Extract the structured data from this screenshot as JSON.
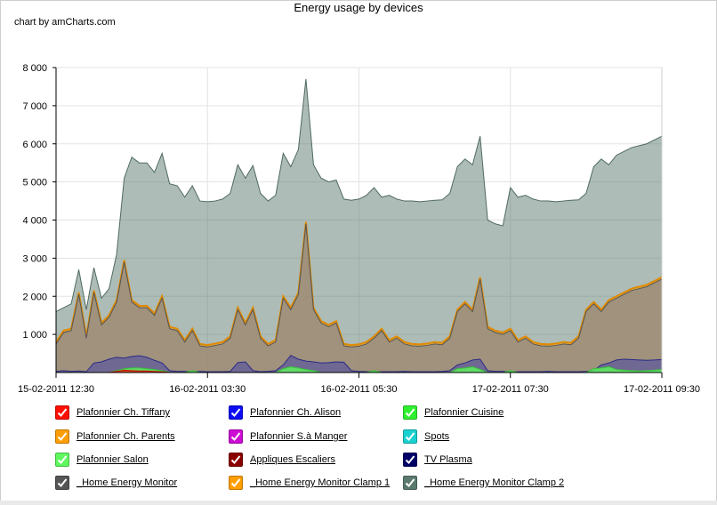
{
  "chart_title": "Energy usage by devices",
  "credit": "chart by amCharts.com",
  "chart_data": {
    "type": "area",
    "title": "Energy usage by devices",
    "ylim": [
      0,
      8000
    ],
    "y_ticks": [
      "8 000",
      "7 000",
      "6 000",
      "5 000",
      "4 000",
      "3 000",
      "2 000",
      "1 000"
    ],
    "y_tick_values": [
      8000,
      7000,
      6000,
      5000,
      4000,
      3000,
      2000,
      1000
    ],
    "x_tick_labels": [
      "15-02-2011 12:30",
      "16-02-2011 03:30",
      "16-02-2011 05:30",
      "17-02-2011 07:30",
      "17-02-2011 09:30"
    ],
    "x_tick_index": [
      0,
      20,
      40,
      60,
      80
    ],
    "grid": true,
    "series": [
      {
        "name": "_Home Energy Monitor Clamp 2",
        "color": "#5b7a6e",
        "values": [
          1600,
          1700,
          1800,
          2700,
          1650,
          2750,
          1950,
          2200,
          3100,
          5100,
          5650,
          5500,
          5500,
          5250,
          5750,
          4950,
          4900,
          4600,
          4900,
          4500,
          4480,
          4500,
          4550,
          4700,
          5450,
          5100,
          5430,
          4700,
          4500,
          4650,
          5750,
          5400,
          5850,
          7700,
          5450,
          5100,
          5000,
          5050,
          4550,
          4520,
          4550,
          4650,
          4850,
          4600,
          4650,
          4550,
          4500,
          4500,
          4480,
          4500,
          4520,
          4530,
          4700,
          5400,
          5600,
          5450,
          6200,
          4000,
          3900,
          3850,
          4850,
          4600,
          4650,
          4550,
          4500,
          4500,
          4480,
          4500,
          4520,
          4530,
          4700,
          5400,
          5600,
          5450,
          5700,
          5800,
          5900,
          5950,
          6000,
          6100,
          6200
        ]
      },
      {
        "name": "_Home Energy Monitor Clamp 1",
        "color": "#ff9e01",
        "values": [
          800,
          1100,
          1150,
          2100,
          950,
          2150,
          1300,
          1500,
          1900,
          2950,
          1900,
          1750,
          1750,
          1550,
          2000,
          1200,
          1150,
          850,
          1150,
          750,
          720,
          760,
          800,
          950,
          1700,
          1300,
          1700,
          950,
          750,
          850,
          2000,
          1700,
          2100,
          3950,
          1700,
          1350,
          1250,
          1350,
          750,
          720,
          740,
          800,
          950,
          1150,
          850,
          950,
          800,
          750,
          740,
          760,
          800,
          780,
          950,
          1650,
          1850,
          1650,
          2500,
          1200,
          1100,
          1050,
          1150,
          850,
          950,
          800,
          750,
          740,
          760,
          800,
          780,
          950,
          1650,
          1850,
          1650,
          1900,
          2000,
          2100,
          2200,
          2250,
          2300,
          2400,
          2500
        ]
      },
      {
        "name": "_Home Energy Monitor",
        "color": "#555555",
        "values": [
          750,
          1050,
          1100,
          2050,
          900,
          2100,
          1250,
          1450,
          1850,
          2900,
          1850,
          1700,
          1700,
          1500,
          1950,
          1150,
          1100,
          800,
          1100,
          700,
          670,
          710,
          750,
          900,
          1650,
          1250,
          1650,
          900,
          700,
          800,
          1950,
          1650,
          2050,
          3900,
          1650,
          1300,
          1200,
          1300,
          700,
          670,
          690,
          750,
          900,
          1100,
          800,
          900,
          750,
          700,
          690,
          710,
          750,
          730,
          900,
          1600,
          1800,
          1600,
          2450,
          1150,
          1050,
          1000,
          1100,
          800,
          900,
          750,
          700,
          690,
          710,
          750,
          730,
          900,
          1600,
          1800,
          1600,
          1850,
          1950,
          2050,
          2150,
          2200,
          2250,
          2350,
          2450
        ]
      },
      {
        "name": "TV Plasma",
        "color": "#000066",
        "values": [
          0,
          0,
          0,
          0,
          0,
          0,
          0,
          0,
          0,
          0,
          0,
          0,
          0,
          0,
          0,
          0,
          0,
          0,
          0,
          0,
          0,
          0,
          0,
          0,
          0,
          0,
          0,
          0,
          0,
          0,
          0,
          0,
          0,
          0,
          0,
          0,
          0,
          0,
          0,
          0,
          0,
          0,
          0,
          0,
          0,
          0,
          0,
          0,
          0,
          0,
          0,
          0,
          0,
          0,
          0,
          0,
          0,
          0,
          0,
          0,
          0,
          0,
          0,
          0,
          0,
          0,
          0,
          0,
          0,
          0,
          0,
          0,
          0,
          0,
          0,
          0,
          0,
          0,
          0,
          0,
          0
        ]
      },
      {
        "name": "Plafonnier Ch. Alison",
        "color": "#0d0df5",
        "values": [
          30,
          50,
          30,
          40,
          20,
          250,
          280,
          350,
          400,
          380,
          420,
          440,
          400,
          320,
          250,
          50,
          30,
          30,
          20,
          30,
          20,
          20,
          20,
          30,
          260,
          280,
          50,
          20,
          30,
          50,
          200,
          450,
          350,
          300,
          280,
          250,
          260,
          280,
          270,
          50,
          30,
          20,
          30,
          20,
          20,
          20,
          30,
          20,
          20,
          20,
          20,
          30,
          50,
          200,
          250,
          330,
          350,
          50,
          30,
          30,
          20,
          20,
          20,
          20,
          20,
          30,
          20,
          20,
          20,
          20,
          30,
          50,
          200,
          250,
          330,
          350,
          340,
          330,
          320,
          330,
          340
        ]
      },
      {
        "name": "Plafonnier Salon",
        "color": "#5ef75e",
        "values": [
          0,
          0,
          0,
          0,
          0,
          0,
          0,
          0,
          50,
          100,
          120,
          120,
          100,
          80,
          50,
          0,
          0,
          0,
          50,
          0,
          0,
          0,
          0,
          0,
          0,
          0,
          0,
          0,
          0,
          0,
          100,
          150,
          120,
          80,
          50,
          0,
          0,
          0,
          0,
          0,
          0,
          0,
          50,
          0,
          0,
          0,
          0,
          0,
          0,
          0,
          0,
          0,
          0,
          100,
          120,
          150,
          80,
          0,
          0,
          0,
          50,
          0,
          0,
          0,
          0,
          0,
          0,
          0,
          0,
          0,
          0,
          100,
          120,
          150,
          80,
          60,
          50,
          40,
          50,
          60,
          80
        ]
      },
      {
        "name": "Plafonnier Ch. Tiffany",
        "color": "#ff0f00",
        "values": [
          0,
          0,
          0,
          0,
          0,
          0,
          0,
          0,
          30,
          60,
          50,
          40,
          40,
          30,
          20,
          0,
          0,
          0,
          0,
          0,
          0,
          0,
          0,
          0,
          0,
          0,
          0,
          0,
          0,
          0,
          0,
          0,
          0,
          0,
          0,
          0,
          0,
          0,
          0,
          0,
          0,
          0,
          0,
          0,
          0,
          0,
          0,
          0,
          0,
          0,
          0,
          0,
          0,
          0,
          0,
          0,
          0,
          0,
          0,
          0,
          0,
          0,
          0,
          0,
          0,
          0,
          0,
          0,
          0,
          0,
          0,
          0,
          0,
          0,
          0,
          0,
          0,
          0,
          0,
          0,
          0
        ]
      }
    ]
  },
  "legend": [
    {
      "label": "Plafonnier Ch. Tiffany",
      "color": "#ff0f00"
    },
    {
      "label": "Plafonnier Ch. Alison",
      "color": "#0d0df5"
    },
    {
      "label": "Plafonnier Cuisine",
      "color": "#2ff02f"
    },
    {
      "label": "Plafonnier Ch. Parents",
      "color": "#ff9e01"
    },
    {
      "label": "Plafonnier S.à Manger",
      "color": "#cd0dd4"
    },
    {
      "label": "Spots",
      "color": "#1ad1d1"
    },
    {
      "label": "Plafonnier Salon",
      "color": "#5ef75e"
    },
    {
      "label": "Appliques Escaliers",
      "color": "#8b0000"
    },
    {
      "label": "TV Plasma",
      "color": "#000066"
    },
    {
      "label": "_Home Energy Monitor",
      "color": "#555555"
    },
    {
      "label": "_Home Energy Monitor Clamp 1",
      "color": "#ff9e01"
    },
    {
      "label": "_Home Energy Monitor Clamp 2",
      "color": "#5b7a6e"
    }
  ]
}
